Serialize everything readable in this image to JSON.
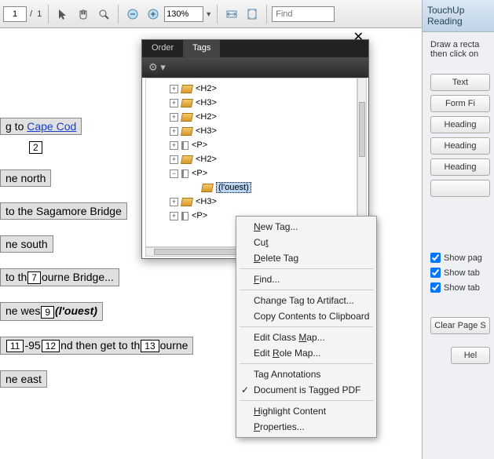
{
  "toolbar": {
    "page_current": "1",
    "page_sep": "/",
    "page_total": "1",
    "zoom": "130%",
    "find_placeholder": "Find"
  },
  "doc_lines": {
    "l1_a": "g to ",
    "l1_link": "Cape Cod",
    "box2": "2",
    "l2": "ne north",
    "l3": " to the Sagamore Bridge",
    "l4": "ne south",
    "l5_a": " to th",
    "box7": "7",
    "l5_b": "ourne Bridge...",
    "l6_a": "ne wes",
    "box9": "9",
    "l6_b": "(l'ouest)",
    "box11": "11",
    "l7_a": "-95",
    "box12": "12",
    "l7_b": "nd then get to th",
    "box13": "13",
    "l7_c": "ourne",
    "l8": "ne east"
  },
  "panel": {
    "tab_order": "Order",
    "tab_tags": "Tags",
    "nodes": [
      {
        "exp": "+",
        "type": "tag",
        "label": "<H2>"
      },
      {
        "exp": "+",
        "type": "tag",
        "label": "<H3>"
      },
      {
        "exp": "+",
        "type": "tag",
        "label": "<H2>"
      },
      {
        "exp": "+",
        "type": "tag",
        "label": "<H3>"
      },
      {
        "exp": "+",
        "type": "p",
        "label": "<P>"
      },
      {
        "exp": "+",
        "type": "tag",
        "label": "<H2>"
      },
      {
        "exp": "−",
        "type": "p",
        "label": "<P>"
      },
      {
        "child": true,
        "type": "tag",
        "label": "(l'ouest)",
        "selected": true
      },
      {
        "exp": "+",
        "type": "tag",
        "label": "<H3>"
      },
      {
        "exp": "+",
        "type": "p",
        "label": "<P>"
      }
    ]
  },
  "ctx": {
    "items": [
      {
        "html": "<u>N</u>ew Tag..."
      },
      {
        "html": "Cu<u>t</u>"
      },
      {
        "html": "<u>D</u>elete Tag"
      },
      {
        "sep": true
      },
      {
        "html": "<u>F</u>ind..."
      },
      {
        "sep": true
      },
      {
        "html": "Change Tag to Artifact..."
      },
      {
        "html": "Copy Contents to Clipboard"
      },
      {
        "sep": true
      },
      {
        "html": "Edit Class <u>M</u>ap..."
      },
      {
        "html": "Edit <u>R</u>ole Map..."
      },
      {
        "sep": true
      },
      {
        "html": "Tag Annotations"
      },
      {
        "html": "Document is Tagged PDF",
        "check": true
      },
      {
        "sep": true
      },
      {
        "html": "<u>H</u>ighlight Content"
      },
      {
        "html": "<u>P</u>roperties..."
      }
    ]
  },
  "rpanel": {
    "title": "TouchUp Reading",
    "hint1": "Draw a recta",
    "hint2": "then click on",
    "btn_text": "Text",
    "btn_form": "Form Fi",
    "btn_h1": "Heading",
    "btn_h2": "Heading",
    "btn_h3": "Heading",
    "chk1": "Show pag",
    "chk2": "Show tab",
    "chk3": "Show tab",
    "btn_clear": "Clear Page S",
    "btn_help": "Hel"
  }
}
